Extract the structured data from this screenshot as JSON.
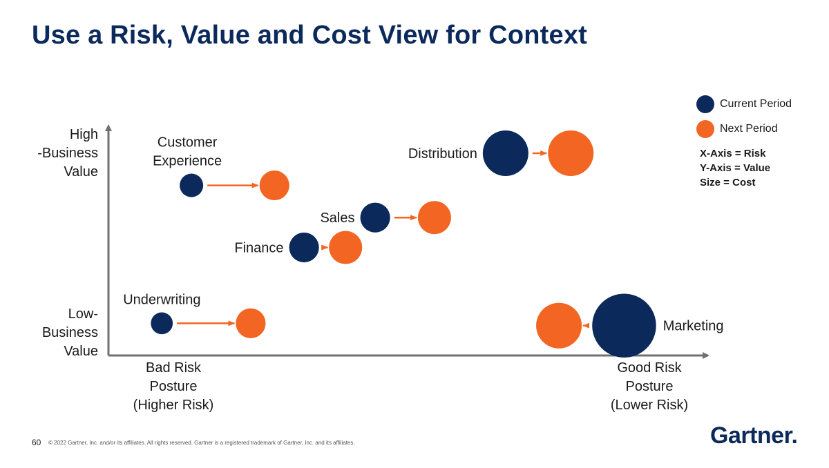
{
  "title": "Use a Risk, Value and Cost View for Context",
  "colors": {
    "current": "#0b2a5b",
    "next": "#f26522",
    "axis": "#707070",
    "title": "#0b2a5b"
  },
  "y_axis": {
    "high_label": [
      "High",
      "-Business",
      "Value"
    ],
    "low_label": [
      "Low-",
      "Business",
      "Value"
    ]
  },
  "x_axis": {
    "left_label": [
      "Bad Risk",
      "Posture",
      "(Higher Risk)"
    ],
    "right_label": [
      "Good Risk",
      "Posture",
      "(Lower Risk)"
    ]
  },
  "legend": {
    "current": "Current Period",
    "next": "Next Period"
  },
  "axis_notes": [
    "X-Axis = Risk",
    "Y-Axis = Value",
    "Size = Cost"
  ],
  "chart_data": {
    "type": "scatter",
    "title": "Use a Risk, Value and Cost View for Context",
    "xlabel": "Risk",
    "ylabel": "Value",
    "size_meaning": "Cost",
    "xlim": [
      0,
      100
    ],
    "ylim": [
      0,
      100
    ],
    "series": [
      {
        "name": "Customer Experience",
        "label": [
          "Customer",
          "Experience"
        ],
        "label_pos": "above",
        "current": {
          "x": 14,
          "y": 74,
          "size": 1.5
        },
        "next": {
          "x": 28,
          "y": 74,
          "size": 3
        }
      },
      {
        "name": "Distribution",
        "label": [
          "Distribution"
        ],
        "label_pos": "left",
        "current": {
          "x": 67,
          "y": 88,
          "size": 9
        },
        "next": {
          "x": 78,
          "y": 88,
          "size": 9
        }
      },
      {
        "name": "Sales",
        "label": [
          "Sales"
        ],
        "label_pos": "left",
        "current": {
          "x": 45,
          "y": 60,
          "size": 3
        },
        "next": {
          "x": 55,
          "y": 60,
          "size": 4
        }
      },
      {
        "name": "Finance",
        "label": [
          "Finance"
        ],
        "label_pos": "left",
        "current": {
          "x": 33,
          "y": 47,
          "size": 3
        },
        "next": {
          "x": 40,
          "y": 47,
          "size": 4
        }
      },
      {
        "name": "Underwriting",
        "label": [
          "Underwriting"
        ],
        "label_pos": "above",
        "current": {
          "x": 9,
          "y": 14,
          "size": 1.2
        },
        "next": {
          "x": 24,
          "y": 14,
          "size": 3
        }
      },
      {
        "name": "Marketing",
        "label": [
          "Marketing"
        ],
        "label_pos": "right",
        "current": {
          "x": 87,
          "y": 13,
          "size": 20
        },
        "next": {
          "x": 76,
          "y": 13,
          "size": 9
        }
      }
    ]
  },
  "footer": {
    "page_number": "60",
    "copyright": "© 2022 Gartner, Inc. and/or its affiliates. All rights reserved. Gartner is a registered trademark of Gartner, Inc. and its affiliates.",
    "logo": "Gartner",
    "logo_dot": "."
  }
}
